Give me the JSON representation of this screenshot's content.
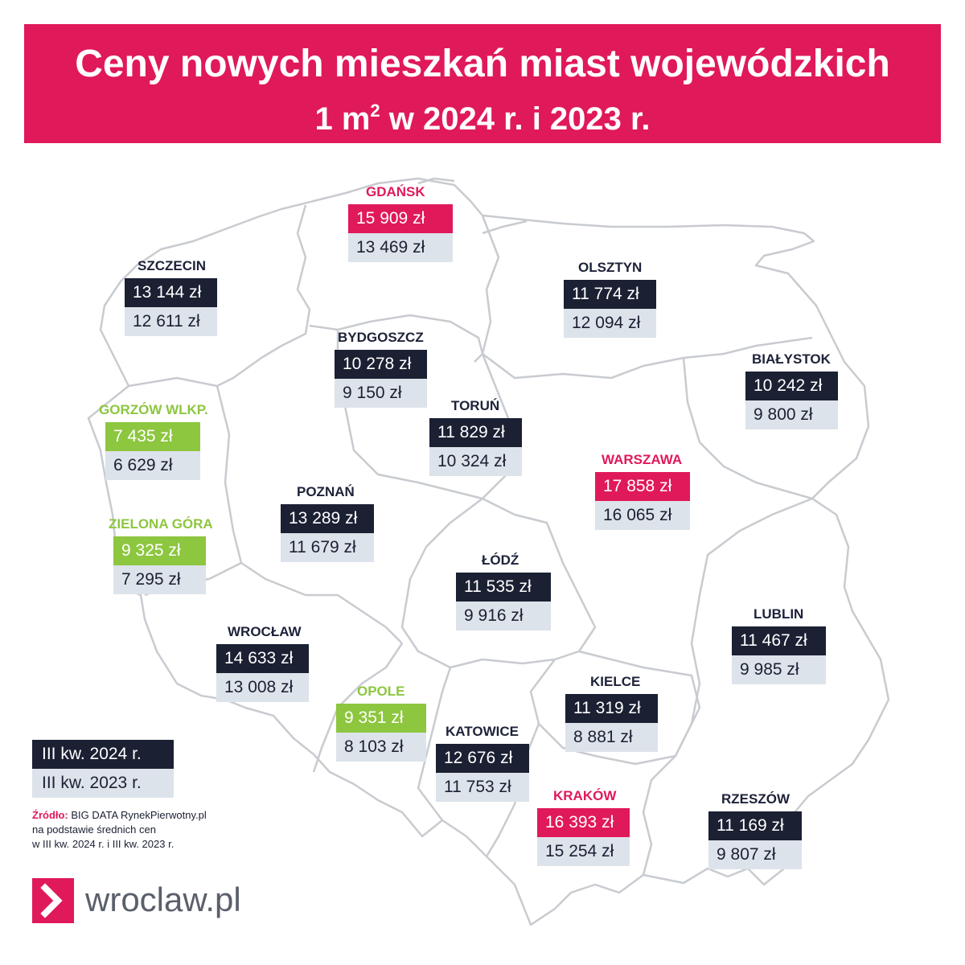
{
  "header": {
    "title": "Ceny nowych mieszkań miast wojewódzkich",
    "subtitle_prefix": "1 m",
    "subtitle_sup": "2",
    "subtitle_suffix": " w 2024 r. i 2023 r."
  },
  "colors": {
    "accent": "#e0195a",
    "dark": "#1b2033",
    "green": "#8dc63f",
    "light": "#dde3ea",
    "map_outline": "#c8cbd0"
  },
  "cities": [
    {
      "key": "gdansk",
      "name": "GDAŃSK",
      "price_2024": "15 909 zł",
      "price_2023": "13 469 zł",
      "color": "pink"
    },
    {
      "key": "szczecin",
      "name": "SZCZECIN",
      "price_2024": "13 144 zł",
      "price_2023": "12 611 zł",
      "color": "dark"
    },
    {
      "key": "olsztyn",
      "name": "OLSZTYN",
      "price_2024": "11 774 zł",
      "price_2023": "12 094 zł",
      "color": "dark"
    },
    {
      "key": "bydgoszcz",
      "name": "BYDGOSZCZ",
      "price_2024": "10 278 zł",
      "price_2023": "9 150 zł",
      "color": "dark"
    },
    {
      "key": "bialystok",
      "name": "BIAŁYSTOK",
      "price_2024": "10 242 zł",
      "price_2023": "9 800 zł",
      "color": "dark"
    },
    {
      "key": "gorzow",
      "name": "GORZÓW WLKP.",
      "price_2024": "7 435 zł",
      "price_2023": "6 629 zł",
      "color": "green"
    },
    {
      "key": "torun",
      "name": "TORUŃ",
      "price_2024": "11 829 zł",
      "price_2023": "10 324 zł",
      "color": "dark"
    },
    {
      "key": "warszawa",
      "name": "WARSZAWA",
      "price_2024": "17 858 zł",
      "price_2023": "16 065 zł",
      "color": "pink"
    },
    {
      "key": "poznan",
      "name": "POZNAŃ",
      "price_2024": "13 289 zł",
      "price_2023": "11 679 zł",
      "color": "dark"
    },
    {
      "key": "zielona",
      "name": "ZIELONA GÓRA",
      "price_2024": "9 325 zł",
      "price_2023": "7 295 zł",
      "color": "green"
    },
    {
      "key": "lodz",
      "name": "ŁÓDŹ",
      "price_2024": "11 535 zł",
      "price_2023": "9 916 zł",
      "color": "dark"
    },
    {
      "key": "lublin",
      "name": "LUBLIN",
      "price_2024": "11 467 zł",
      "price_2023": "9 985 zł",
      "color": "dark"
    },
    {
      "key": "wroclaw",
      "name": "WROCŁAW",
      "price_2024": "14 633 zł",
      "price_2023": "13 008 zł",
      "color": "dark"
    },
    {
      "key": "kielce",
      "name": "KIELCE",
      "price_2024": "11 319 zł",
      "price_2023": "8 881 zł",
      "color": "dark"
    },
    {
      "key": "opole",
      "name": "OPOLE",
      "price_2024": "9 351 zł",
      "price_2023": "8 103 zł",
      "color": "green"
    },
    {
      "key": "katowice",
      "name": "KATOWICE",
      "price_2024": "12 676 zł",
      "price_2023": "11 753 zł",
      "color": "dark"
    },
    {
      "key": "krakow",
      "name": "KRAKÓW",
      "price_2024": "16 393 zł",
      "price_2023": "15 254 zł",
      "color": "pink"
    },
    {
      "key": "rzeszow",
      "name": "RZESZÓW",
      "price_2024": "11 169 zł",
      "price_2023": "9 807 zł",
      "color": "dark"
    }
  ],
  "legend": {
    "label_2024": "III kw. 2024 r.",
    "label_2023": "III kw. 2023 r."
  },
  "source": {
    "label": "Źródło:",
    "line1": " BIG DATA RynekPierwotny.pl",
    "line2": "na podstawie średnich cen",
    "line3": "w III kw. 2024 r. i III kw. 2023 r."
  },
  "logo": {
    "text": "wroclaw.pl",
    "icon": "chevron-right-icon"
  }
}
